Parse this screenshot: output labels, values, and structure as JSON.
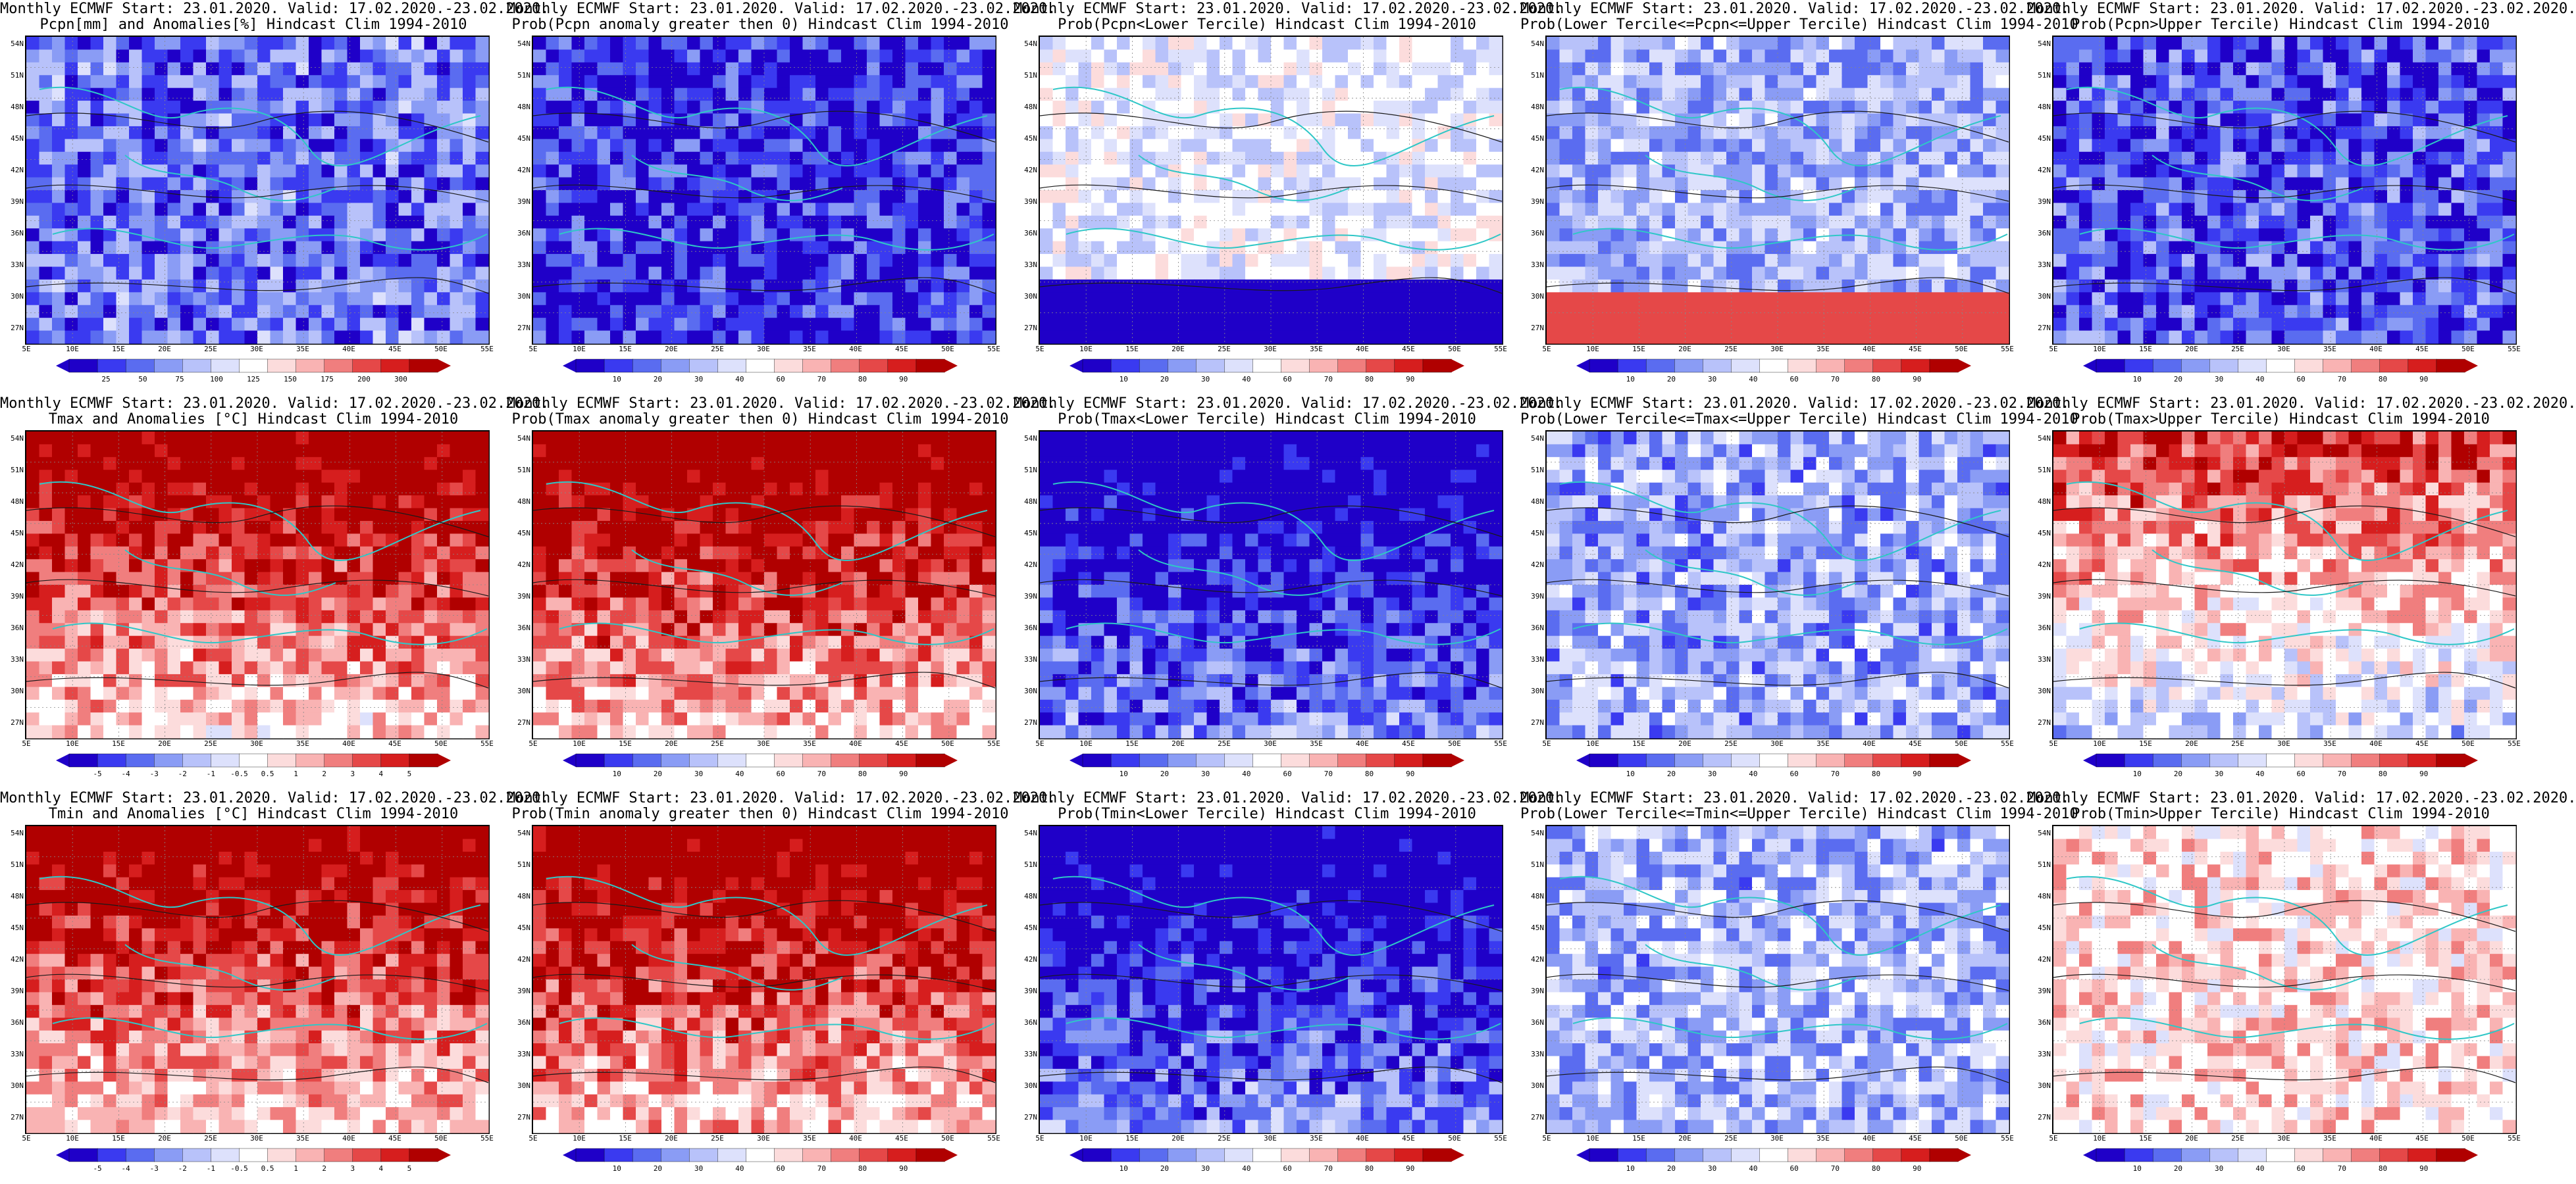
{
  "axes": {
    "lat_labels": [
      "54N",
      "51N",
      "48N",
      "45N",
      "42N",
      "39N",
      "36N",
      "33N",
      "30N",
      "27N"
    ],
    "lon_labels": [
      "5E",
      "10E",
      "15E",
      "20E",
      "25E",
      "30E",
      "35E",
      "40E",
      "45E",
      "50E",
      "55E"
    ]
  },
  "colorbars": {
    "pcpn_anom": [
      "25",
      "50",
      "75",
      "100",
      "125",
      "150",
      "175",
      "200",
      "300"
    ],
    "temp_anom": [
      "-5",
      "-4",
      "-3",
      "-2",
      "-1",
      "-0.5",
      "0.5",
      "1",
      "2",
      "3",
      "4",
      "5"
    ],
    "prob": [
      "10",
      "20",
      "30",
      "40",
      "60",
      "70",
      "80",
      "90"
    ]
  },
  "panels": [
    {
      "title1": "Monthly ECMWF Start: 23.01.2020. Valid: 17.02.2020.-23.02.2020.",
      "title2": "Pcpn[mm] and Anomalies[%] Hindcast Clim 1994-2010",
      "field": "pcpn_anom",
      "bias": 0.2,
      "bar": "pcpn_anom"
    },
    {
      "title1": "Monthly ECMWF Start: 23.01.2020. Valid: 17.02.2020.-23.02.2020.",
      "title2": "Prob(Pcpn anomaly greater then 0) Hindcast Clim 1994-2010",
      "field": "prob",
      "bias": 0.1,
      "bar": "prob"
    },
    {
      "title1": "Monthly ECMWF Start: 23.01.2020. Valid: 17.02.2020.-23.02.2020.",
      "title2": "Prob(Pcpn<Lower Tercile) Hindcast Clim 1994-2010",
      "field": "prob",
      "bias": 0.35,
      "bar": "prob"
    },
    {
      "title1": "Monthly ECMWF Start: 23.01.2020. Valid: 17.02.2020.-23.02.2020.",
      "title2": "Prob(Lower Tercile<=Pcpn<=Upper Tercile) Hindcast Clim 1994-2010",
      "field": "prob",
      "bias": 0.45,
      "bar": "prob"
    },
    {
      "title1": "Monthly ECMWF Start: 23.01.2020. Valid: 17.02.2020.-23.02.2020.",
      "title2": "Prob(Pcpn>Upper Tercile) Hindcast Clim 1994-2010",
      "field": "prob",
      "bias": 0.15,
      "bar": "prob"
    },
    {
      "title1": "Monthly ECMWF Start: 23.01.2020. Valid: 17.02.2020.-23.02.2020.",
      "title2": "Tmax and Anomalies [°C] Hindcast Clim 1994-2010",
      "field": "temp_anom",
      "bias": 0.82,
      "bar": "temp_anom"
    },
    {
      "title1": "Monthly ECMWF Start: 23.01.2020. Valid: 17.02.2020.-23.02.2020.",
      "title2": "Prob(Tmax anomaly greater then 0) Hindcast Clim 1994-2010",
      "field": "prob",
      "bias": 0.85,
      "bar": "prob"
    },
    {
      "title1": "Monthly ECMWF Start: 23.01.2020. Valid: 17.02.2020.-23.02.2020.",
      "title2": "Prob(Tmax<Lower Tercile) Hindcast Clim 1994-2010",
      "field": "prob",
      "bias": 0.08,
      "bar": "prob"
    },
    {
      "title1": "Monthly ECMWF Start: 23.01.2020. Valid: 17.02.2020.-23.02.2020.",
      "title2": "Prob(Lower Tercile<=Tmax<=Upper Tercile) Hindcast Clim 1994-2010",
      "field": "prob",
      "bias": 0.3,
      "bar": "prob"
    },
    {
      "title1": "Monthly ECMWF Start: 23.01.2020. Valid: 17.02.2020.-23.02.2020.",
      "title2": "Prob(Tmax>Upper Tercile) Hindcast Clim 1994-2010",
      "field": "prob",
      "bias": 0.62,
      "bar": "prob"
    },
    {
      "title1": "Monthly ECMWF Start: 23.01.2020. Valid: 17.02.2020.-23.02.2020.",
      "title2": "Tmin and Anomalies [°C] Hindcast Clim 1994-2010",
      "field": "temp_anom",
      "bias": 0.82,
      "bar": "temp_anom"
    },
    {
      "title1": "Monthly ECMWF Start: 23.01.2020. Valid: 17.02.2020.-23.02.2020.",
      "title2": "Prob(Tmin anomaly greater then 0) Hindcast Clim 1994-2010",
      "field": "prob",
      "bias": 0.85,
      "bar": "prob"
    },
    {
      "title1": "Monthly ECMWF Start: 23.01.2020. Valid: 17.02.2020.-23.02.2020.",
      "title2": "Prob(Tmin<Lower Tercile) Hindcast Clim 1994-2010",
      "field": "prob",
      "bias": 0.08,
      "bar": "prob"
    },
    {
      "title1": "Monthly ECMWF Start: 23.01.2020. Valid: 17.02.2020.-23.02.2020.",
      "title2": "Prob(Lower Tercile<=Tmin<=Upper Tercile) Hindcast Clim 1994-2010",
      "field": "prob",
      "bias": 0.32,
      "bar": "prob"
    },
    {
      "title1": "Monthly ECMWF Start: 23.01.2020. Valid: 17.02.2020.-23.02.2020.",
      "title2": "Prob(Tmin>Upper Tercile) Hindcast Clim 1994-2010",
      "field": "prob",
      "bias": 0.58,
      "bar": "prob"
    }
  ],
  "palette": {
    "cool": [
      "#1f00c8",
      "#3a3af0",
      "#5a6cf0",
      "#8a9cf5",
      "#b8c2fa",
      "#dde1fc"
    ],
    "warm": [
      "#fcdcdc",
      "#f9b3b3",
      "#f07e7e",
      "#e54848",
      "#d61e1e",
      "#b00000"
    ],
    "coast": "#2fc7c7",
    "contour": "#1a1a1a"
  }
}
